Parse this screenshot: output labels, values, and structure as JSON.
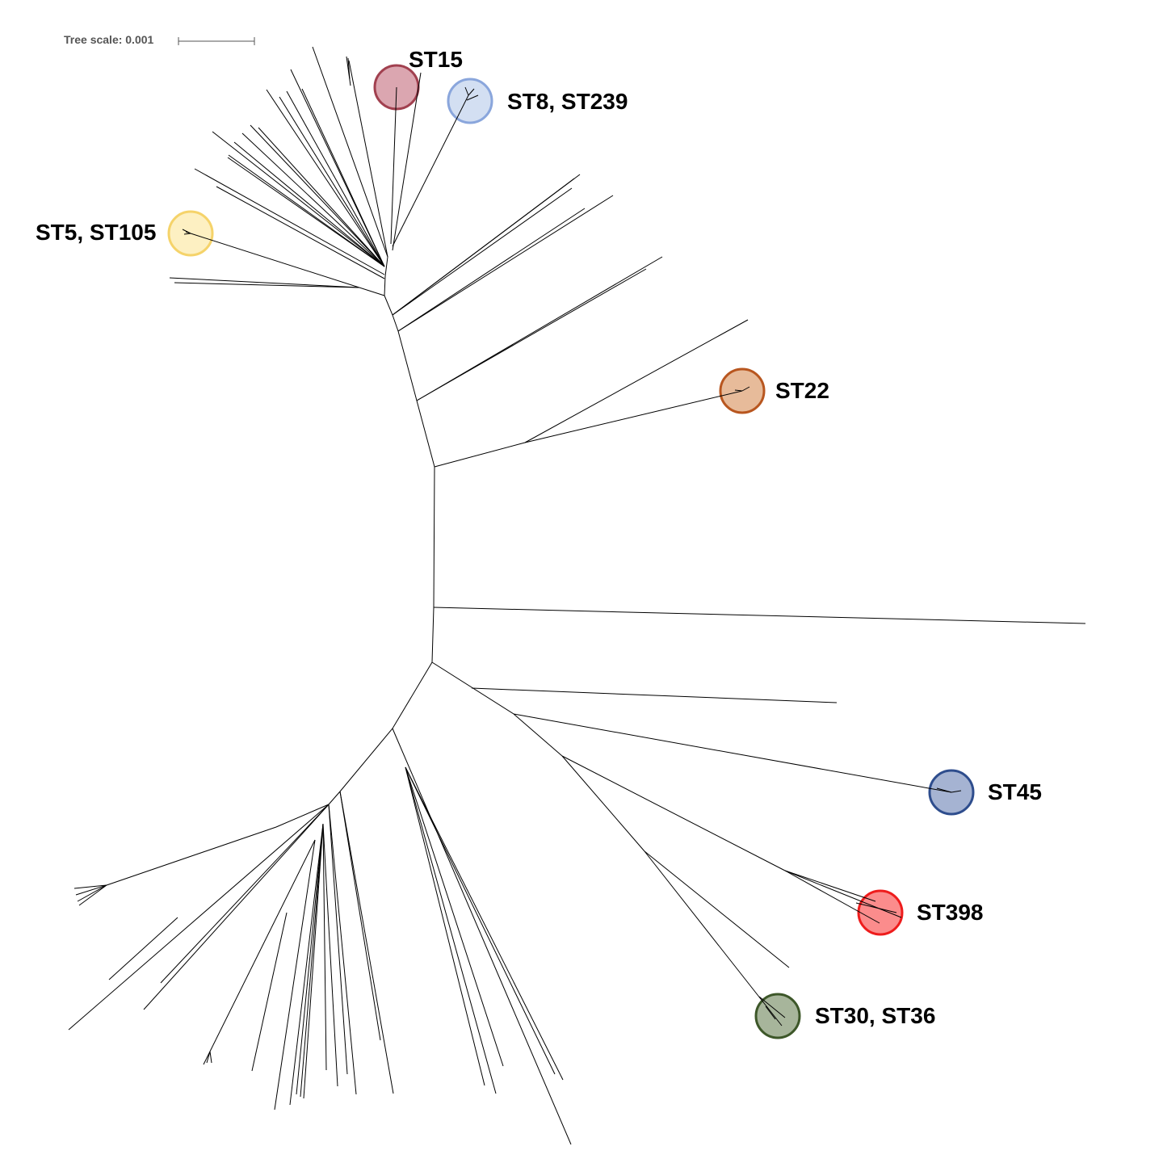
{
  "scale": {
    "label": "Tree scale: 0.001"
  },
  "clades": [
    {
      "id": "st15",
      "label": "ST15",
      "fill": "#dba6b0",
      "stroke": "#a1404f"
    },
    {
      "id": "st8",
      "label": "ST8, ST239",
      "fill": "#d3dff2",
      "stroke": "#8aa6dc"
    },
    {
      "id": "st5",
      "label": "ST5, ST105",
      "fill": "#fdf0c2",
      "stroke": "#f5d36a"
    },
    {
      "id": "st22",
      "label": "ST22",
      "fill": "#e7bb9a",
      "stroke": "#b8561f"
    },
    {
      "id": "st45",
      "label": "ST45",
      "fill": "#a5b3d2",
      "stroke": "#2e4d8d"
    },
    {
      "id": "st398",
      "label": "ST398",
      "fill": "#fb8c8c",
      "stroke": "#ee1c1c"
    },
    {
      "id": "st30",
      "label": "ST30, ST36",
      "fill": "#a7b59b",
      "stroke": "#3d5729"
    }
  ]
}
